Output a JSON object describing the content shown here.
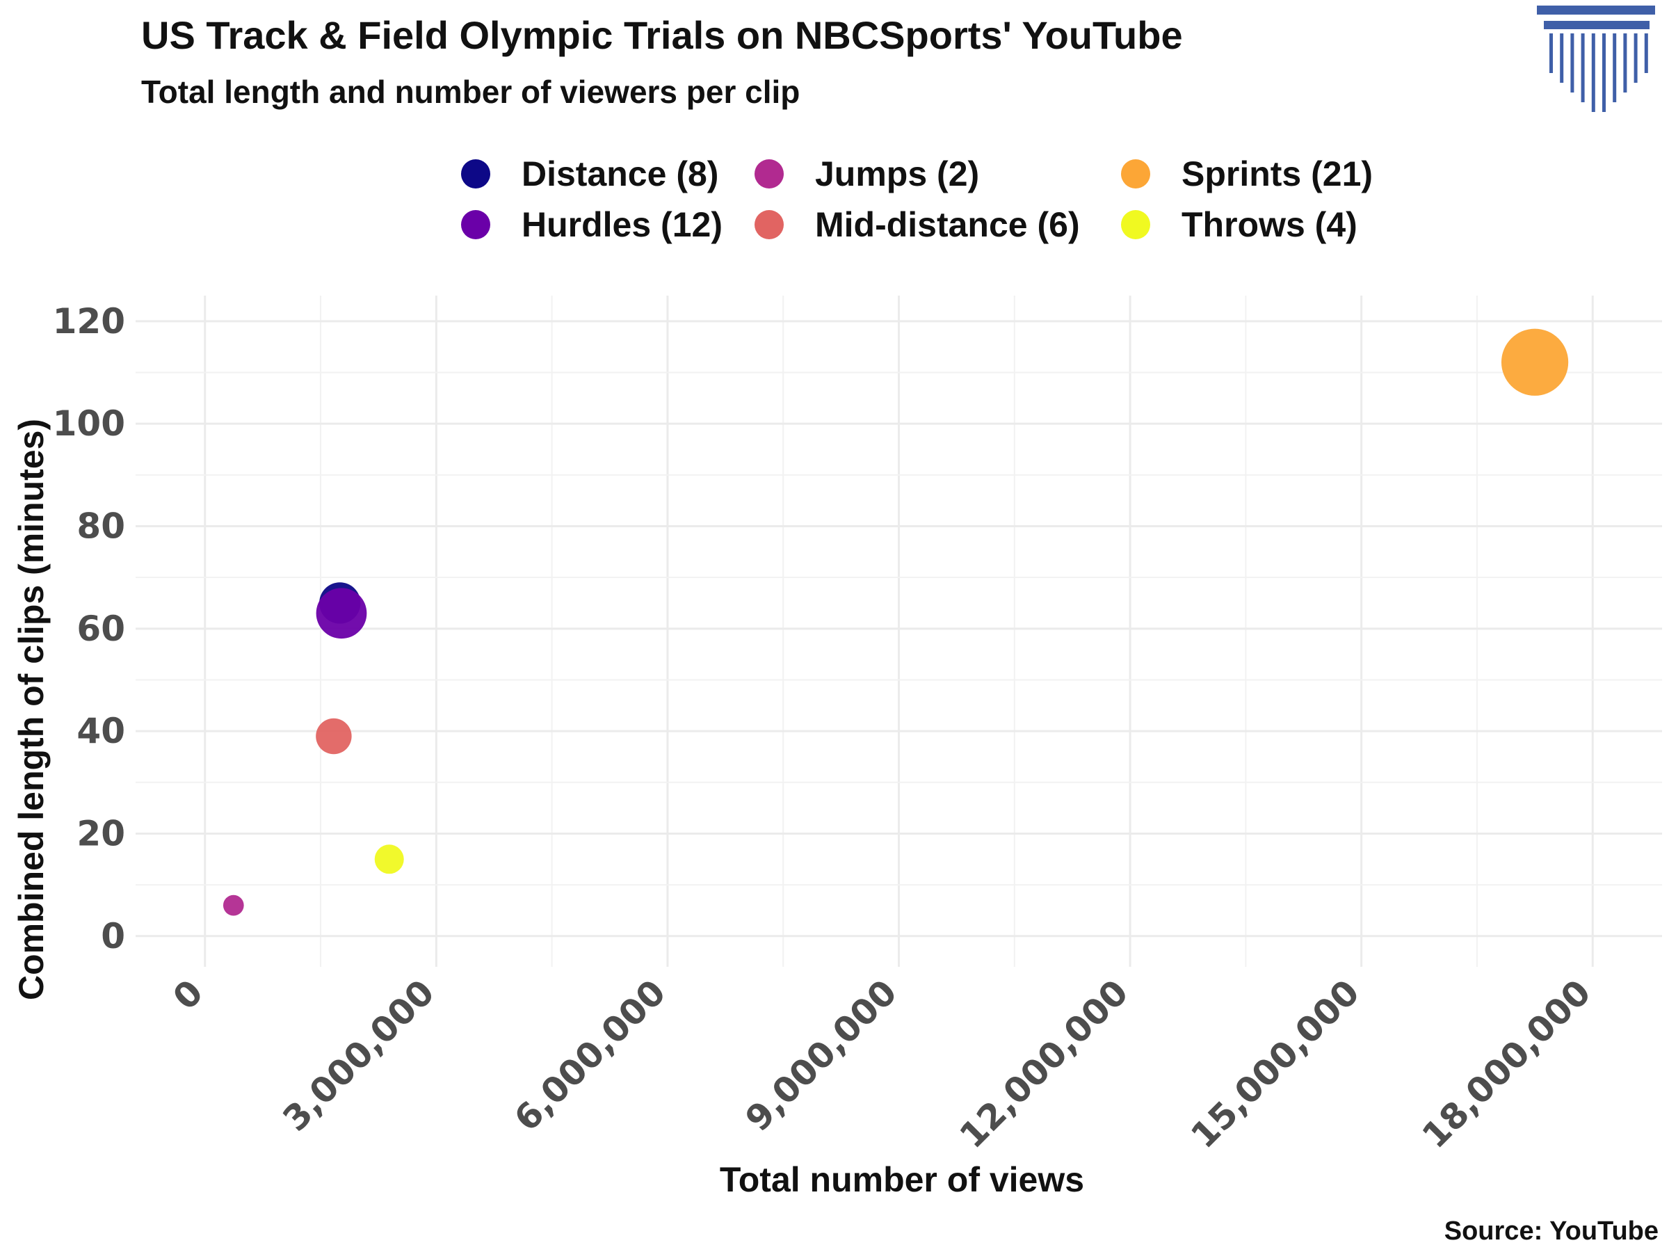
{
  "chart_data": {
    "type": "scatter",
    "title": "US Track & Field Olympic Trials on NBCSports' YouTube",
    "subtitle": "Total length and number of viewers per clip",
    "xlabel": "Total number of views",
    "ylabel": "Combined length of clips (minutes)",
    "source": "Source: YouTube",
    "xlim": [
      -900000,
      18900000
    ],
    "ylim": [
      -6,
      125
    ],
    "xticks": [
      0,
      3000000,
      6000000,
      9000000,
      12000000,
      15000000,
      18000000
    ],
    "xtick_labels": [
      "0",
      "3,000,000",
      "6,000,000",
      "9,000,000",
      "12,000,000",
      "15,000,000",
      "18,000,000"
    ],
    "yticks": [
      0,
      20,
      40,
      60,
      80,
      100,
      120
    ],
    "ytick_labels": [
      "0",
      "20",
      "40",
      "60",
      "80",
      "100",
      "120"
    ],
    "grid": true,
    "legend_position": "top",
    "series": [
      {
        "name": "Distance (8)",
        "x": 1750000,
        "y": 65,
        "size": 8,
        "color": "#0d0887"
      },
      {
        "name": "Hurdles (12)",
        "x": 1770000,
        "y": 63,
        "size": 12,
        "color": "#6a00a8"
      },
      {
        "name": "Jumps (2)",
        "x": 370000,
        "y": 6,
        "size": 2,
        "color": "#b12a90"
      },
      {
        "name": "Mid-distance (6)",
        "x": 1670000,
        "y": 39,
        "size": 6,
        "color": "#e16462"
      },
      {
        "name": "Sprints (21)",
        "x": 17250000,
        "y": 112,
        "size": 21,
        "color": "#fca636"
      },
      {
        "name": "Throws (4)",
        "x": 2390000,
        "y": 15,
        "size": 4,
        "color": "#f0f921"
      }
    ],
    "legend_order": [
      "Distance (8)",
      "Hurdles (12)",
      "Jumps (2)",
      "Mid-distance (6)",
      "Sprints (21)",
      "Throws (4)"
    ]
  },
  "logo": {
    "name": "columns-logo",
    "color": "#3f5fa8"
  }
}
